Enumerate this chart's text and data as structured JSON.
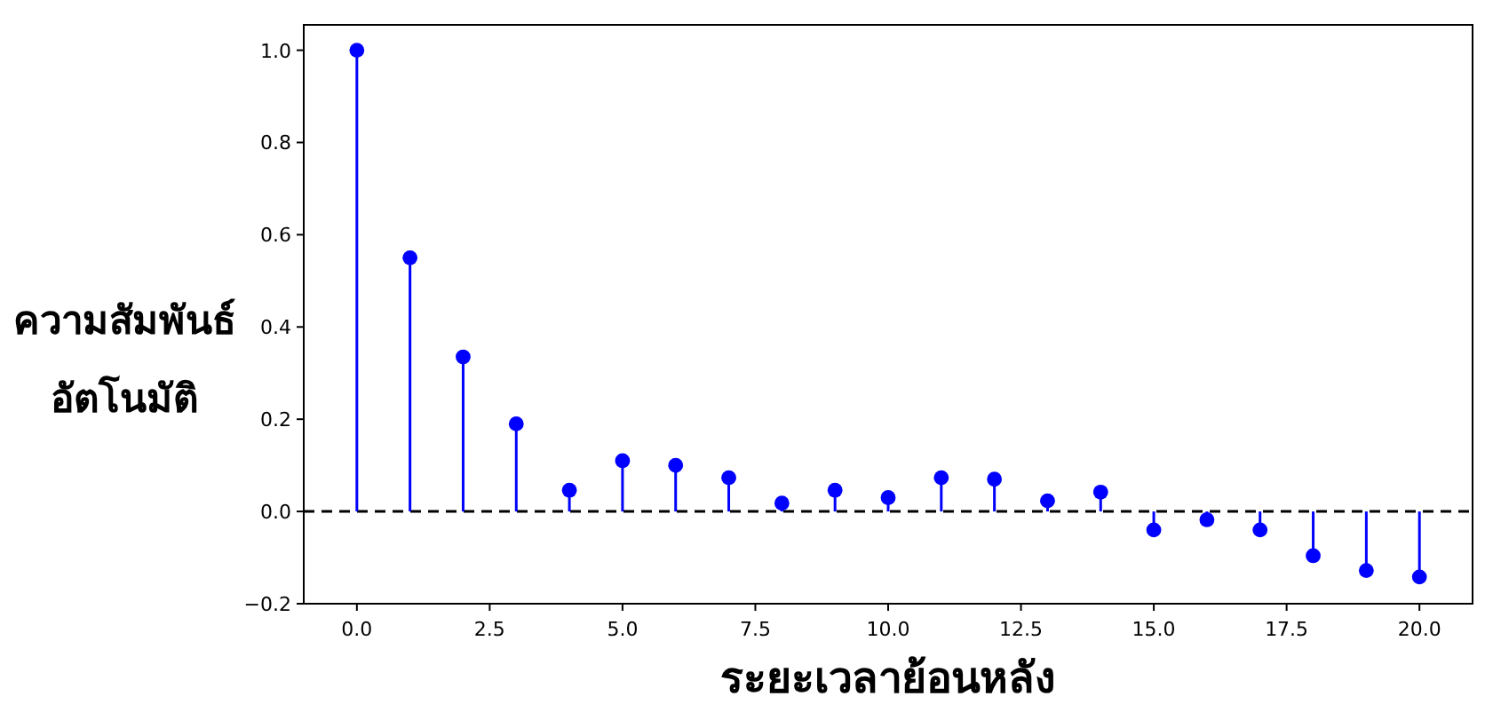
{
  "chart_data": {
    "type": "lollipop",
    "xlabel": "ระยะเวลาย้อนหลัง",
    "ylabel": "ความสัมพันธ์\nอัตโนมัติ",
    "x": [
      0,
      1,
      2,
      3,
      4,
      5,
      6,
      7,
      8,
      9,
      10,
      11,
      12,
      13,
      14,
      15,
      16,
      17,
      18,
      19,
      20
    ],
    "series": [
      {
        "color": "#0000ff",
        "values": [
          1.0,
          0.55,
          0.335,
          0.19,
          0.046,
          0.11,
          0.1,
          0.073,
          0.018,
          0.046,
          0.03,
          0.073,
          0.07,
          0.023,
          0.042,
          -0.04,
          -0.018,
          -0.04,
          -0.096,
          -0.128,
          -0.142
        ]
      }
    ],
    "marker": "circle",
    "xlim": [
      -1,
      21
    ],
    "ylim": [
      -0.2,
      1.055
    ],
    "xticks": [
      {
        "value": 0,
        "label": "0.0"
      },
      {
        "value": 2.5,
        "label": "2.5"
      },
      {
        "value": 5,
        "label": "5.0"
      },
      {
        "value": 7.5,
        "label": "7.5"
      },
      {
        "value": 10,
        "label": "10.0"
      },
      {
        "value": 12.5,
        "label": "12.5"
      },
      {
        "value": 15,
        "label": "15.0"
      },
      {
        "value": 17.5,
        "label": "17.5"
      },
      {
        "value": 20,
        "label": "20.0"
      }
    ],
    "yticks": [
      {
        "value": -0.2,
        "label": "−0.2"
      },
      {
        "value": 0,
        "label": "0.0"
      },
      {
        "value": 0.2,
        "label": "0.2"
      },
      {
        "value": 0.4,
        "label": "0.4"
      },
      {
        "value": 0.6,
        "label": "0.6"
      },
      {
        "value": 0.8,
        "label": "0.8"
      },
      {
        "value": 1.0,
        "label": "1.0"
      }
    ],
    "ref_lines": [
      {
        "axis": "y",
        "value": 0,
        "color": "#000000",
        "line_style": "dashed"
      }
    ],
    "grid": false
  }
}
